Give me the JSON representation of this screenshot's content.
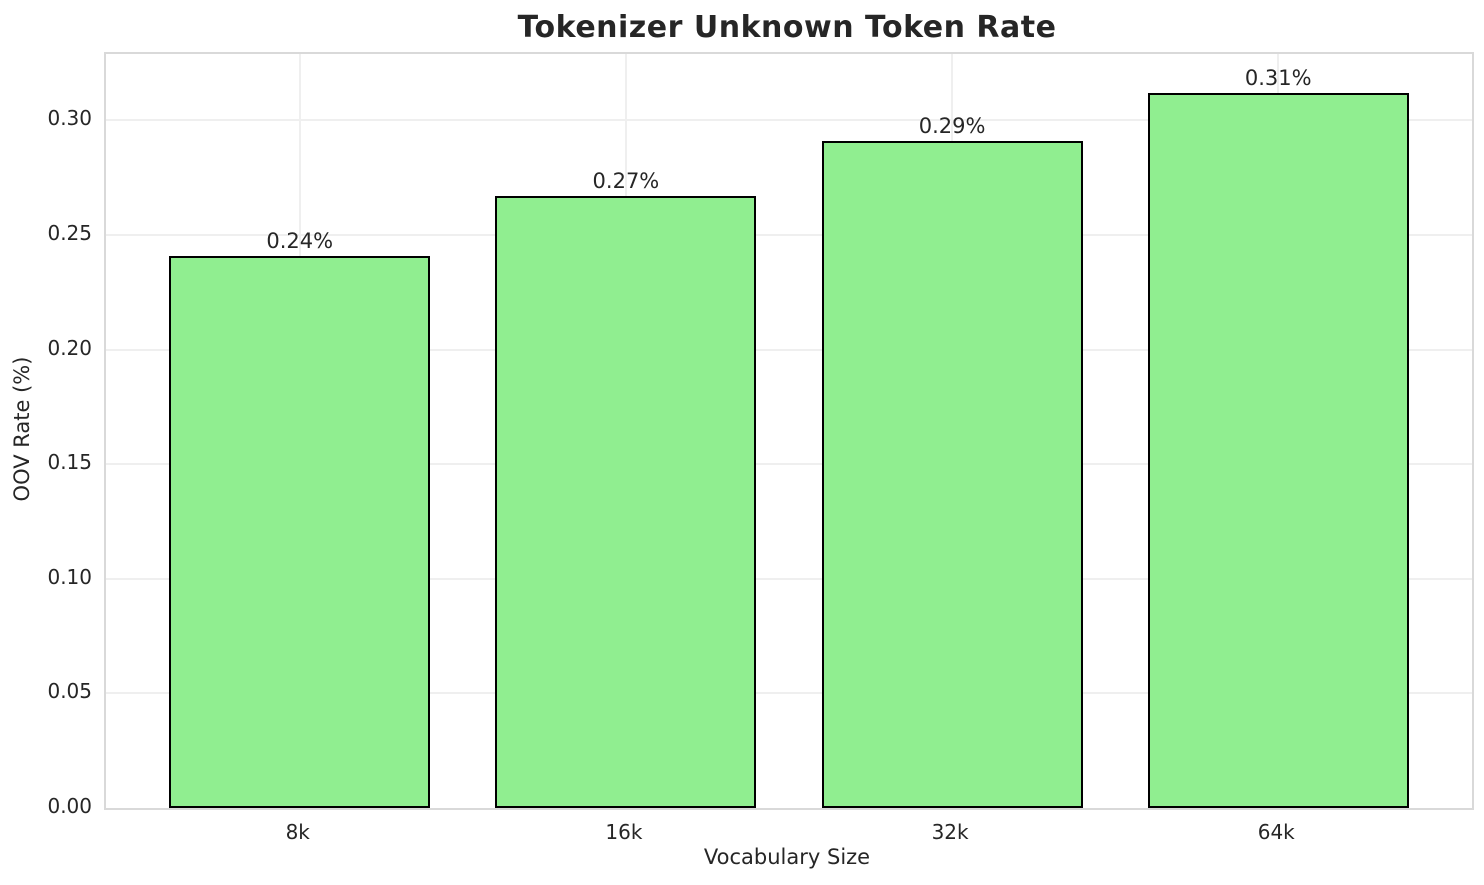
{
  "chart_data": {
    "type": "bar",
    "title": "Tokenizer Unknown Token Rate",
    "xlabel": "Vocabulary Size",
    "ylabel": "OOV Rate (%)",
    "categories": [
      "8k",
      "16k",
      "32k",
      "64k"
    ],
    "values": [
      0.241,
      0.267,
      0.291,
      0.312
    ],
    "bar_labels": [
      "0.24%",
      "0.27%",
      "0.29%",
      "0.31%"
    ],
    "ylim": [
      0,
      0.329
    ],
    "xlim": [
      -0.594,
      3.594
    ],
    "yticks": [
      0.0,
      0.05,
      0.1,
      0.15,
      0.2,
      0.25,
      0.3
    ],
    "ytick_labels": [
      "0.00",
      "0.05",
      "0.10",
      "0.15",
      "0.20",
      "0.25",
      "0.30"
    ],
    "grid": true,
    "legend": false,
    "bar_width_fraction": 0.8,
    "colors": {
      "bar_fill": "#90EE90",
      "bar_edge": "#000000",
      "grid": "#efefef",
      "spine": "#d9d9d9",
      "text": "#262626",
      "background": "#ffffff"
    }
  }
}
